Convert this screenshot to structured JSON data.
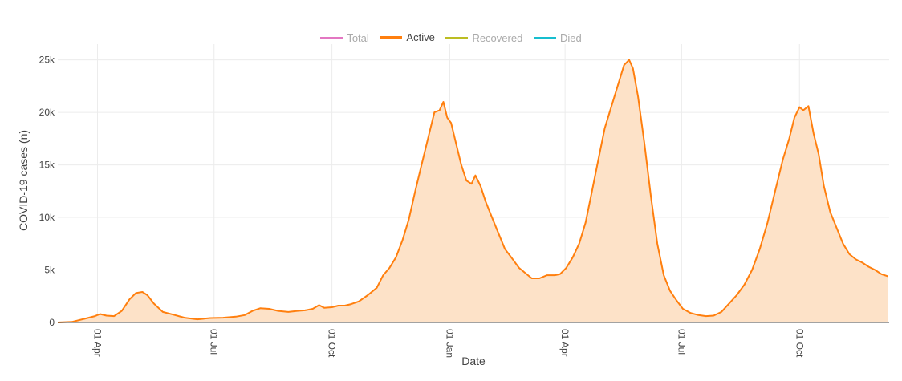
{
  "legend": {
    "items": [
      {
        "label": "Total",
        "color": "#e377c2",
        "active": false
      },
      {
        "label": "Active",
        "color": "#ff7f0e",
        "active": true
      },
      {
        "label": "Recovered",
        "color": "#bcbd22",
        "active": false
      },
      {
        "label": "Died",
        "color": "#17becf",
        "active": false
      }
    ]
  },
  "chart_data": {
    "type": "area",
    "xlabel": "Date",
    "ylabel": "COVID-19 cases (n)",
    "grid": true,
    "legend_placement": "top-center",
    "line_color": "#ff7f0e",
    "fill_color": "#fde2c8",
    "ylim": [
      0,
      26500
    ],
    "xlim": [
      "2020-03-01",
      "2021-12-10"
    ],
    "y_ticks": [
      {
        "value": 0,
        "label": "0"
      },
      {
        "value": 5000,
        "label": "5k"
      },
      {
        "value": 10000,
        "label": "10k"
      },
      {
        "value": 15000,
        "label": "15k"
      },
      {
        "value": 20000,
        "label": "20k"
      },
      {
        "value": 25000,
        "label": "25k"
      }
    ],
    "x_ticks": [
      {
        "value": "2020-04-01",
        "label": "01 Apr"
      },
      {
        "value": "2020-07-01",
        "label": "01 Jul"
      },
      {
        "value": "2020-10-01",
        "label": "01 Oct"
      },
      {
        "value": "2021-01-01",
        "label": "01 Jan"
      },
      {
        "value": "2021-04-01",
        "label": "01 Apr"
      },
      {
        "value": "2021-07-01",
        "label": "01 Jul"
      },
      {
        "value": "2021-10-01",
        "label": "01 Oct"
      }
    ],
    "series": [
      {
        "name": "Active",
        "points": [
          [
            "2020-03-01",
            0
          ],
          [
            "2020-03-12",
            50
          ],
          [
            "2020-03-22",
            350
          ],
          [
            "2020-03-30",
            600
          ],
          [
            "2020-04-03",
            800
          ],
          [
            "2020-04-08",
            650
          ],
          [
            "2020-04-14",
            600
          ],
          [
            "2020-04-20",
            1100
          ],
          [
            "2020-04-26",
            2200
          ],
          [
            "2020-05-01",
            2800
          ],
          [
            "2020-05-06",
            2900
          ],
          [
            "2020-05-10",
            2600
          ],
          [
            "2020-05-15",
            1800
          ],
          [
            "2020-05-22",
            1000
          ],
          [
            "2020-05-30",
            750
          ],
          [
            "2020-06-08",
            450
          ],
          [
            "2020-06-18",
            300
          ],
          [
            "2020-06-28",
            420
          ],
          [
            "2020-07-08",
            450
          ],
          [
            "2020-07-18",
            550
          ],
          [
            "2020-07-25",
            700
          ],
          [
            "2020-07-31",
            1100
          ],
          [
            "2020-08-06",
            1350
          ],
          [
            "2020-08-13",
            1300
          ],
          [
            "2020-08-20",
            1100
          ],
          [
            "2020-08-28",
            1000
          ],
          [
            "2020-09-04",
            1100
          ],
          [
            "2020-09-10",
            1150
          ],
          [
            "2020-09-16",
            1300
          ],
          [
            "2020-09-21",
            1650
          ],
          [
            "2020-09-25",
            1400
          ],
          [
            "2020-10-01",
            1450
          ],
          [
            "2020-10-06",
            1600
          ],
          [
            "2020-10-11",
            1600
          ],
          [
            "2020-10-16",
            1750
          ],
          [
            "2020-10-22",
            2000
          ],
          [
            "2020-10-29",
            2600
          ],
          [
            "2020-11-05",
            3300
          ],
          [
            "2020-11-10",
            4500
          ],
          [
            "2020-11-15",
            5200
          ],
          [
            "2020-11-20",
            6200
          ],
          [
            "2020-11-25",
            7800
          ],
          [
            "2020-11-30",
            9800
          ],
          [
            "2020-12-05",
            12500
          ],
          [
            "2020-12-10",
            15000
          ],
          [
            "2020-12-15",
            17500
          ],
          [
            "2020-12-20",
            20000
          ],
          [
            "2020-12-24",
            20200
          ],
          [
            "2020-12-27",
            21000
          ],
          [
            "2020-12-30",
            19500
          ],
          [
            "2021-01-02",
            19000
          ],
          [
            "2021-01-06",
            17000
          ],
          [
            "2021-01-10",
            15000
          ],
          [
            "2021-01-14",
            13500
          ],
          [
            "2021-01-18",
            13200
          ],
          [
            "2021-01-21",
            14000
          ],
          [
            "2021-01-25",
            13000
          ],
          [
            "2021-01-29",
            11500
          ],
          [
            "2021-02-03",
            10000
          ],
          [
            "2021-02-08",
            8500
          ],
          [
            "2021-02-13",
            7000
          ],
          [
            "2021-02-18",
            6200
          ],
          [
            "2021-02-24",
            5200
          ],
          [
            "2021-03-01",
            4700
          ],
          [
            "2021-03-06",
            4200
          ],
          [
            "2021-03-12",
            4200
          ],
          [
            "2021-03-18",
            4500
          ],
          [
            "2021-03-24",
            4500
          ],
          [
            "2021-03-28",
            4600
          ],
          [
            "2021-04-02",
            5200
          ],
          [
            "2021-04-07",
            6200
          ],
          [
            "2021-04-12",
            7500
          ],
          [
            "2021-04-17",
            9500
          ],
          [
            "2021-04-22",
            12500
          ],
          [
            "2021-04-27",
            15500
          ],
          [
            "2021-05-02",
            18500
          ],
          [
            "2021-05-07",
            20500
          ],
          [
            "2021-05-12",
            22500
          ],
          [
            "2021-05-17",
            24500
          ],
          [
            "2021-05-21",
            25000
          ],
          [
            "2021-05-24",
            24200
          ],
          [
            "2021-05-28",
            21500
          ],
          [
            "2021-06-02",
            17000
          ],
          [
            "2021-06-07",
            12000
          ],
          [
            "2021-06-12",
            7500
          ],
          [
            "2021-06-17",
            4500
          ],
          [
            "2021-06-22",
            3000
          ],
          [
            "2021-06-27",
            2100
          ],
          [
            "2021-07-02",
            1300
          ],
          [
            "2021-07-08",
            900
          ],
          [
            "2021-07-14",
            700
          ],
          [
            "2021-07-20",
            600
          ],
          [
            "2021-07-26",
            650
          ],
          [
            "2021-08-01",
            1000
          ],
          [
            "2021-08-07",
            1800
          ],
          [
            "2021-08-13",
            2600
          ],
          [
            "2021-08-19",
            3600
          ],
          [
            "2021-08-25",
            5000
          ],
          [
            "2021-08-31",
            7000
          ],
          [
            "2021-09-06",
            9500
          ],
          [
            "2021-09-12",
            12500
          ],
          [
            "2021-09-18",
            15500
          ],
          [
            "2021-09-23",
            17500
          ],
          [
            "2021-09-27",
            19500
          ],
          [
            "2021-10-01",
            20500
          ],
          [
            "2021-10-04",
            20200
          ],
          [
            "2021-10-08",
            20600
          ],
          [
            "2021-10-12",
            18000
          ],
          [
            "2021-10-16",
            16000
          ],
          [
            "2021-10-20",
            13000
          ],
          [
            "2021-10-25",
            10500
          ],
          [
            "2021-10-30",
            9000
          ],
          [
            "2021-11-04",
            7500
          ],
          [
            "2021-11-09",
            6500
          ],
          [
            "2021-11-14",
            6000
          ],
          [
            "2021-11-19",
            5700
          ],
          [
            "2021-11-24",
            5300
          ],
          [
            "2021-11-29",
            5000
          ],
          [
            "2021-12-04",
            4600
          ],
          [
            "2021-12-09",
            4400
          ]
        ]
      }
    ]
  }
}
